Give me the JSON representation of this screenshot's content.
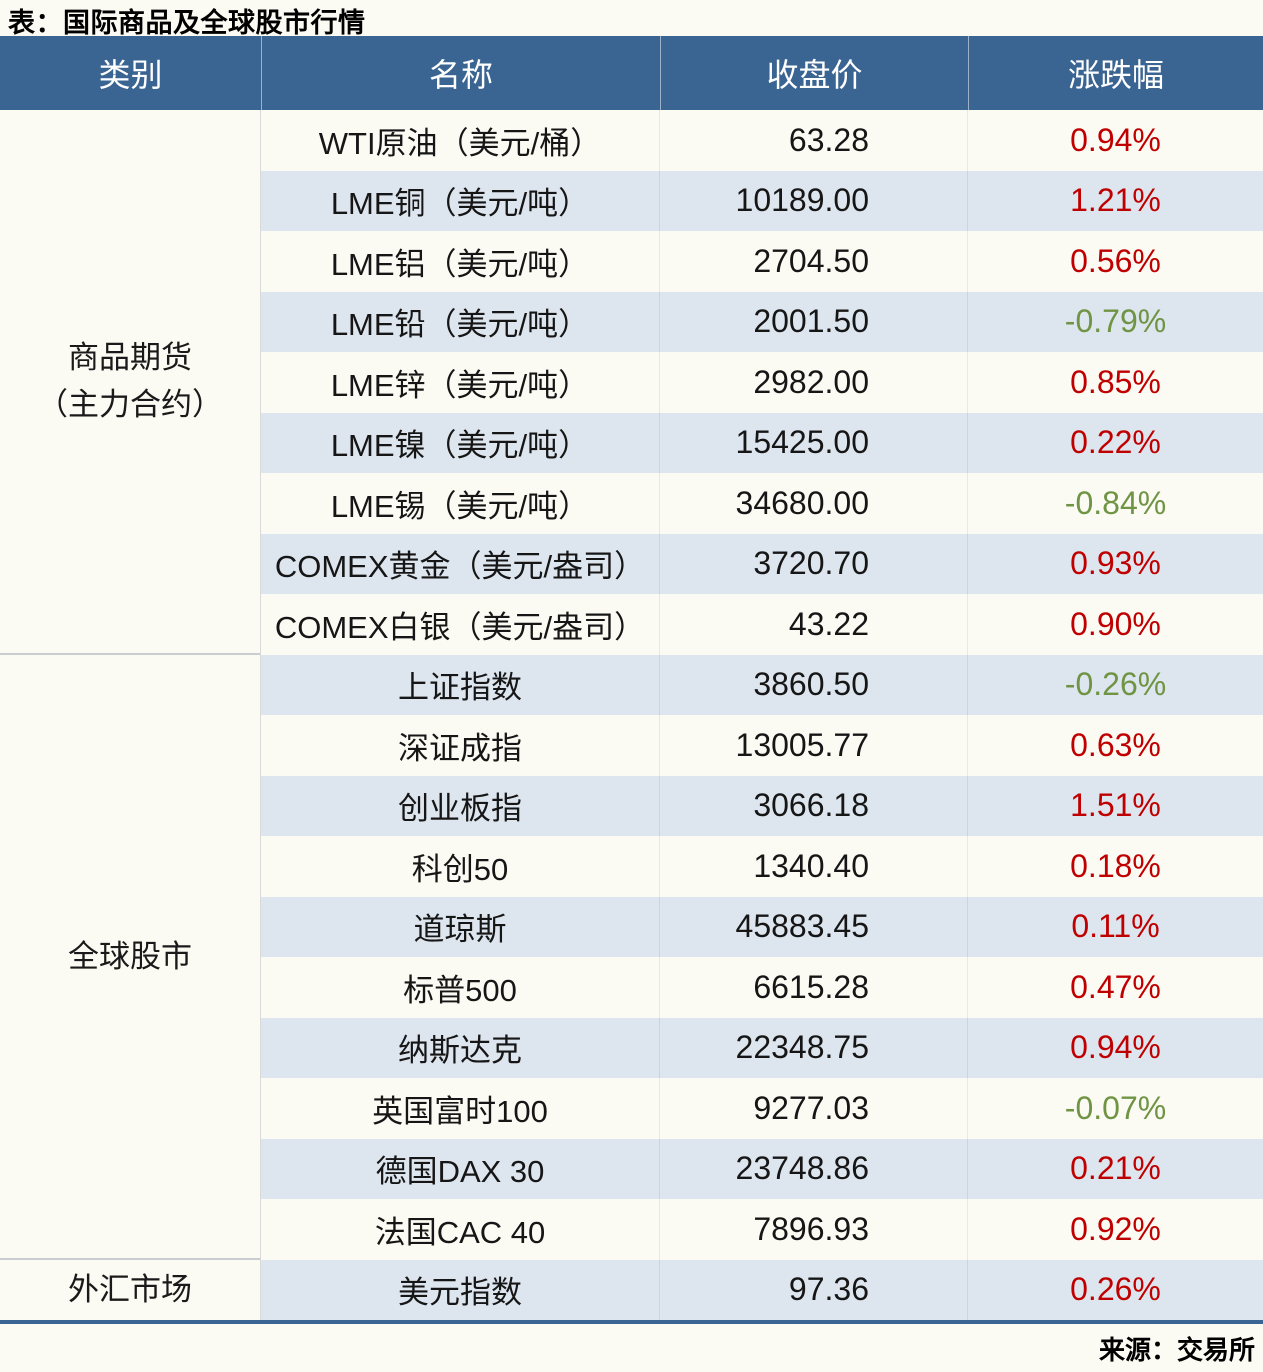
{
  "title": "表：国际商品及全球股市行情",
  "source": "来源：交易所",
  "colors": {
    "header_bg": "#3a6492",
    "stripe_bg": "#dde5ee",
    "positive_change_red": "#c00000",
    "negative_change_green": "#6f9443",
    "bottom_border": "#3a6492"
  },
  "chart_data": {
    "type": "table",
    "title": "表：国际商品及全球股市行情",
    "source": "来源：交易所",
    "columns": [
      "类别",
      "名称",
      "收盘价",
      "涨跌幅"
    ],
    "sections": [
      {
        "category_lines": [
          "商品期货",
          "（主力合约）"
        ],
        "rows": [
          {
            "name": "WTI原油（美元/桶）",
            "close": "63.28",
            "change": "0.94%"
          },
          {
            "name": "LME铜（美元/吨）",
            "close": "10189.00",
            "change": "1.21%"
          },
          {
            "name": "LME铝（美元/吨）",
            "close": "2704.50",
            "change": "0.56%"
          },
          {
            "name": "LME铅（美元/吨）",
            "close": "2001.50",
            "change": "-0.79%"
          },
          {
            "name": "LME锌（美元/吨）",
            "close": "2982.00",
            "change": "0.85%"
          },
          {
            "name": "LME镍（美元/吨）",
            "close": "15425.00",
            "change": "0.22%"
          },
          {
            "name": "LME锡（美元/吨）",
            "close": "34680.00",
            "change": "-0.84%"
          },
          {
            "name": "COMEX黄金（美元/盎司）",
            "close": "3720.70",
            "change": "0.93%"
          },
          {
            "name": "COMEX白银（美元/盎司）",
            "close": "43.22",
            "change": "0.90%"
          }
        ]
      },
      {
        "category_lines": [
          "全球股市"
        ],
        "rows": [
          {
            "name": "上证指数",
            "close": "3860.50",
            "change": "-0.26%"
          },
          {
            "name": "深证成指",
            "close": "13005.77",
            "change": "0.63%"
          },
          {
            "name": "创业板指",
            "close": "3066.18",
            "change": "1.51%"
          },
          {
            "name": "科创50",
            "close": "1340.40",
            "change": "0.18%"
          },
          {
            "name": "道琼斯",
            "close": "45883.45",
            "change": "0.11%"
          },
          {
            "name": "标普500",
            "close": "6615.28",
            "change": "0.47%"
          },
          {
            "name": "纳斯达克",
            "close": "22348.75",
            "change": "0.94%"
          },
          {
            "name": "英国富时100",
            "close": "9277.03",
            "change": "-0.07%"
          },
          {
            "name": "德国DAX 30",
            "close": "23748.86",
            "change": "0.21%"
          },
          {
            "name": "法国CAC 40",
            "close": "7896.93",
            "change": "0.92%"
          }
        ]
      },
      {
        "category_lines": [
          "外汇市场"
        ],
        "rows": [
          {
            "name": "美元指数",
            "close": "97.36",
            "change": "0.26%"
          }
        ]
      }
    ]
  }
}
